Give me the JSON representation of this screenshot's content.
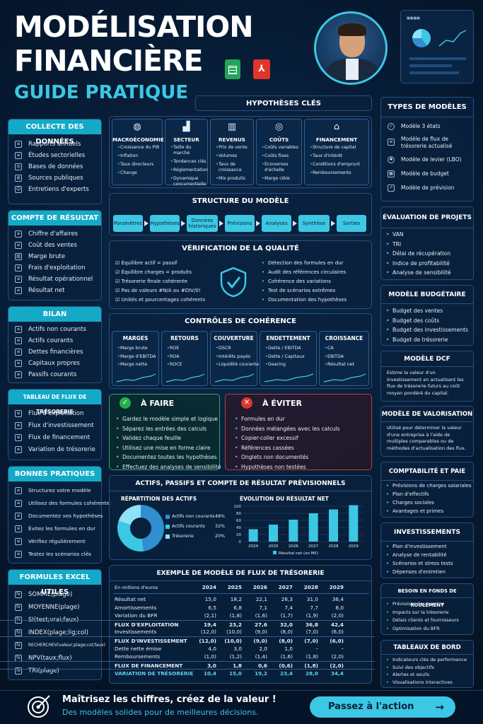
{
  "title": {
    "line1": "MODÉLISATION",
    "line2": "FINANCIÈRE",
    "line3": "GUIDE PRATIQUE"
  },
  "left": {
    "collecte": {
      "title": "COLLECTE DES DONNÉES",
      "items": [
        "Rapports annuels",
        "Études sectorielles",
        "Bases de données",
        "Sources publiques",
        "Entretiens d'experts"
      ]
    },
    "resultat": {
      "title": "COMPTE DE RÉSULTAT",
      "items": [
        "Chiffre d'affaires",
        "Coût des ventes",
        "Marge brute",
        "Frais d'exploitation",
        "Résultat opérationnel",
        "Résultat net"
      ]
    },
    "bilan": {
      "title": "BILAN",
      "items": [
        "Actifs non courants",
        "Actifs courants",
        "Dettes financières",
        "Capitaux propres",
        "Passifs courants"
      ]
    },
    "flux": {
      "title": "TABLEAU DE FLUX DE TRÉSORERIE",
      "items": [
        "Flux d'exploitation",
        "Flux d'investissement",
        "Flux de financement",
        "Variation de trésorerie"
      ]
    },
    "pratiques": {
      "title": "BONNES PRATIQUES",
      "items": [
        "Structurez votre modèle",
        "Utilisez des formules cohérentes",
        "Documentez vos hypothèses",
        "Évitez les formules en dur",
        "Vérifiez régulièrement",
        "Testez les scénarios clés"
      ]
    },
    "formules": {
      "title": "FORMULES EXCEL UTILES",
      "items": [
        "SOMME(plage)",
        "MOYENNE(plage)",
        "SI(test;vrai;faux)",
        "INDEX(plage;lig;col)",
        "RECHERCHEV(valeur;plage;col;faux)",
        "NPV(taux;flux)",
        "TRI(plage)"
      ]
    }
  },
  "hyp": {
    "title": "HYPOTHÈSES CLÉS",
    "cols": [
      {
        "h": "MACROÉCONOMIE",
        "items": [
          "Croissance du PIB",
          "Inflation",
          "Taux directeurs",
          "Change"
        ]
      },
      {
        "h": "SECTEUR",
        "items": [
          "Taille du marché",
          "Tendances clés",
          "Réglementation",
          "Dynamique concurrentielle"
        ]
      },
      {
        "h": "REVENUS",
        "items": [
          "Prix de vente",
          "Volumes",
          "Taux de croissance",
          "Mix produits"
        ]
      },
      {
        "h": "COÛTS",
        "items": [
          "Coûts variables",
          "Coûts fixes",
          "Économies d'échelle",
          "Marge cible"
        ]
      },
      {
        "h": "FINANCEMENT",
        "items": [
          "Structure de capital",
          "Taux d'intérêt",
          "Conditions d'emprunt",
          "Remboursements"
        ]
      }
    ]
  },
  "structure": {
    "title": "STRUCTURE DU MODÈLE",
    "steps": [
      "Paramètres",
      "Hypothèses",
      "Données historiques",
      "Prévisions",
      "Analyses",
      "Synthèse",
      "Sorties"
    ]
  },
  "qualite": {
    "title": "VÉRIFICATION DE LA QUALITÉ",
    "left": [
      "Équilibre actif = passif",
      "Équilibre charges = produits",
      "Trésorerie finale cohérente",
      "Pas de valeurs #N/A ou #DIV/0!",
      "Unités et pourcentages cohérents"
    ],
    "right": [
      "Détection des formules en dur",
      "Audit des références circulaires",
      "Cohérence des variations",
      "Test de scénarios extrêmes",
      "Documentation des hypothèses"
    ]
  },
  "coherence": {
    "title": "CONTRÔLES DE COHÉRENCE",
    "cols": [
      {
        "h": "MARGES",
        "items": [
          "Marge brute",
          "Marge d'EBITDA",
          "Marge nette"
        ]
      },
      {
        "h": "RETOURS",
        "items": [
          "ROE",
          "ROA",
          "ROCE"
        ]
      },
      {
        "h": "COUVERTURE",
        "items": [
          "DSCR",
          "Intérêts payés",
          "Liquidité courante"
        ]
      },
      {
        "h": "ENDETTEMENT",
        "items": [
          "Dette / EBITDA",
          "Dette / Capitaux",
          "Gearing"
        ]
      },
      {
        "h": "CROISSANCE",
        "items": [
          "CA",
          "EBITDA",
          "Résultat net"
        ]
      }
    ]
  },
  "afaire": {
    "title": "À FAIRE",
    "items": [
      "Gardez le modèle simple et logique",
      "Séparez les entrées des calculs",
      "Validez chaque feuille",
      "Utilisez une mise en forme claire",
      "Documentez toutes les hypothèses",
      "Effectuez des analyses de sensibilité"
    ]
  },
  "aeviter": {
    "title": "À ÉVITER",
    "items": [
      "Formules en dur",
      "Données mélangées avec les calculs",
      "Copier-coller excessif",
      "Références cassées",
      "Onglets non documentés",
      "Hypothèses non testées"
    ]
  },
  "previsionnels": {
    "title": "ACTIFS, PASSIFS ET COMPTE DE RÉSULTAT PRÉVISIONNELS",
    "pie_title": "RÉPARTITION DES ACTIFS",
    "bar_title": "ÉVOLUTION DU RÉSULTAT NET",
    "legend": "Résultat net (en M€)"
  },
  "chart_data": [
    {
      "type": "pie",
      "title": "RÉPARTITION DES ACTIFS",
      "categories": [
        "Actifs non courants",
        "Actifs courants",
        "Trésorerie"
      ],
      "labels": [
        "48%",
        "32%",
        "20%"
      ],
      "values": [
        48,
        32,
        20
      ],
      "colors": [
        "#2f8fd0",
        "#3cc7e4",
        "#8fe3f5"
      ]
    },
    {
      "type": "bar",
      "title": "ÉVOLUTION DU RÉSULTAT NET",
      "categories": [
        "2024",
        "2025",
        "2026",
        "2027",
        "2028",
        "2029"
      ],
      "values": [
        35,
        48,
        62,
        80,
        91,
        103
      ],
      "ylim": [
        0,
        100
      ],
      "ticks": [
        "0",
        "20",
        "40",
        "60",
        "80",
        "100"
      ],
      "series": [
        {
          "name": "Résultat net (en M€)",
          "values": [
            35,
            48,
            62,
            80,
            91,
            103
          ]
        }
      ]
    }
  ],
  "flux_table": {
    "title": "EXEMPLE DE MODÈLE DE FLUX DE TRÉSORERIE",
    "unit": "En millions d'euros",
    "years": [
      "2024",
      "2025",
      "2026",
      "2027",
      "2028",
      "2029"
    ],
    "rows": [
      {
        "l": "Résultat net",
        "v": [
          "15,0",
          "18,2",
          "22,1",
          "26,3",
          "31,0",
          "36,4"
        ]
      },
      {
        "l": "Amortissements",
        "v": [
          "6,5",
          "6,8",
          "7,1",
          "7,4",
          "7,7",
          "8,0"
        ]
      },
      {
        "l": "Variation du BFR",
        "v": [
          "(2,1)",
          "(1,8)",
          "(1,6)",
          "(1,7)",
          "(1,9)",
          "(2,0)"
        ]
      },
      {
        "l": "FLUX D'EXPLOITATION",
        "v": [
          "19,4",
          "23,2",
          "27,6",
          "32,0",
          "36,8",
          "42,4"
        ],
        "b": true
      },
      {
        "l": "Investissements",
        "v": [
          "(12,0)",
          "(10,0)",
          "(9,0)",
          "(8,0)",
          "(7,0)",
          "(6,0)"
        ]
      },
      {
        "l": "FLUX D'INVESTISSEMENT",
        "v": [
          "(12,0)",
          "(10,0)",
          "(9,0)",
          "(8,0)",
          "(7,0)",
          "(6,0)"
        ],
        "b": true
      },
      {
        "l": "Dette nette émise",
        "v": [
          "4,0",
          "3,0",
          "2,0",
          "1,0",
          "–",
          "–"
        ]
      },
      {
        "l": "Remboursements",
        "v": [
          "(1,0)",
          "(1,2)",
          "(1,4)",
          "(1,6)",
          "(1,8)",
          "(2,0)"
        ]
      },
      {
        "l": "FLUX DE FINANCEMENT",
        "v": [
          "3,0",
          "1,8",
          "0,6",
          "(0,6)",
          "(1,8)",
          "(2,0)"
        ],
        "b": true
      },
      {
        "l": "VARIATION DE TRÉSORERIE",
        "v": [
          "10,4",
          "15,0",
          "19,2",
          "23,4",
          "28,0",
          "34,4"
        ],
        "b": true,
        "c": true
      }
    ]
  },
  "right": {
    "types": {
      "title": "TYPES DE MODÈLES",
      "items": [
        "Modèle 3 états",
        "Modèle de flux de trésorerie actualisé",
        "Modèle de levier (LBO)",
        "Modèle de budget",
        "Modèle de prévision"
      ]
    },
    "evaluation": {
      "title": "ÉVALUATION DE PROJETS",
      "items": [
        "VAN",
        "TRI",
        "Délai de récupération",
        "Indice de profitabilité",
        "Analyse de sensibilité"
      ]
    },
    "budget": {
      "title": "MODÈLE BUDGÉTAIRE",
      "items": [
        "Budget des ventes",
        "Budget des coûts",
        "Budget des investissements",
        "Budget de trésorerie"
      ]
    },
    "dcf": {
      "title": "MODÈLE DCF",
      "text": "Estime la valeur d'un investissement en actualisant les flux de trésorerie futurs au coût moyen pondéré du capital."
    },
    "valorisation": {
      "title": "MODÈLE DE VALORISATION",
      "text": "Utilisé pour déterminer la valeur d'une entreprise à l'aide de multiples comparables ou de méthodes d'actualisation des flux."
    },
    "paie": {
      "title": "COMPTABILITÉ ET PAIE",
      "items": [
        "Prévisions de charges salariales",
        "Plan d'effectifs",
        "Charges sociales",
        "Avantages et primes"
      ]
    },
    "invest": {
      "title": "INVESTISSEMENTS",
      "items": [
        "Plan d'investissement",
        "Analyse de rentabilité",
        "Scénarios et stress tests",
        "Dépenses d'entretien"
      ]
    },
    "bfr": {
      "title": "BESOIN EN FONDS DE ROULEMENT",
      "items": [
        "Prévisions des besoins",
        "Impacts sur la trésorerie",
        "Délais clients et fournisseurs",
        "Optimisation du BFR"
      ]
    },
    "tableaux": {
      "title": "TABLEAUX DE BORD",
      "items": [
        "Indicateurs clés de performance",
        "Suivi des objectifs",
        "Alertes et seuils",
        "Visualisations interactives"
      ]
    }
  },
  "footer": {
    "line1": "Maîtrisez les chiffres, créez de la valeur !",
    "line2": "Des modèles solides pour de meilleures décisions.",
    "cta": "Passez à l'action"
  }
}
